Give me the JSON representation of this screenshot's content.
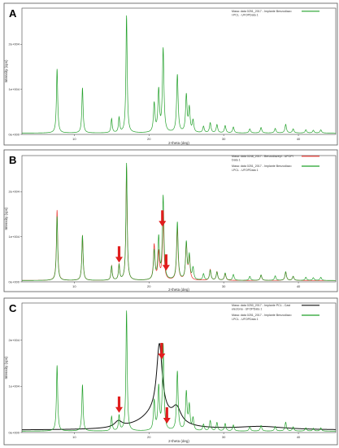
{
  "chart_data": [
    {
      "type": "line",
      "panel": "A",
      "xlabel": "2-theta (deg)",
      "ylabel": "Intensity (cps)",
      "xlim": [
        3,
        45
      ],
      "ylim": [
        0,
        28000
      ],
      "xticks": [
        "10",
        "20",
        "30",
        "40"
      ],
      "yticks": [
        "0e+000",
        "1e+004",
        "2e+004"
      ],
      "legend_position": "top-right",
      "series": [
        {
          "name": "Masa: data 0251_2017 - Implante Benzodiazo\nl-PCL - UFOPData 1",
          "color": "#22a02a",
          "baseline": 300,
          "peaks": [
            [
              7.7,
              14200,
              0.1
            ],
            [
              11.1,
              10000,
              0.1
            ],
            [
              15.0,
              3100,
              0.1
            ],
            [
              16.0,
              3300,
              0.1
            ],
            [
              17.0,
              26000,
              0.1
            ],
            [
              20.7,
              6400,
              0.12
            ],
            [
              21.3,
              9200,
              0.12
            ],
            [
              21.9,
              18500,
              0.12
            ],
            [
              23.8,
              12800,
              0.12
            ],
            [
              25.0,
              8200,
              0.12
            ],
            [
              25.4,
              5200,
              0.12
            ],
            [
              25.9,
              2600,
              0.12
            ],
            [
              27.3,
              1400,
              0.12
            ],
            [
              28.2,
              2200,
              0.12
            ],
            [
              29.1,
              1800,
              0.12
            ],
            [
              30.2,
              1600,
              0.12
            ],
            [
              31.3,
              1300,
              0.12
            ],
            [
              33.5,
              900,
              0.12
            ],
            [
              35.0,
              1200,
              0.12
            ],
            [
              36.9,
              1000,
              0.12
            ],
            [
              38.3,
              1900,
              0.12
            ],
            [
              39.3,
              900,
              0.12
            ],
            [
              41.0,
              700,
              0.12
            ],
            [
              42.0,
              600,
              0.12
            ],
            [
              43.0,
              700,
              0.12
            ]
          ]
        }
      ]
    },
    {
      "type": "line",
      "panel": "B",
      "xlabel": "2-theta (deg)",
      "ylabel": "Intensity (cps)",
      "xlim": [
        3,
        45
      ],
      "ylim": [
        0,
        28000
      ],
      "xticks": [
        "10",
        "20",
        "30",
        "40"
      ],
      "yticks": [
        "0e+000",
        "1e+004",
        "2e+004"
      ],
      "legend_position": "top-right",
      "arrows_x": [
        16.0,
        21.8,
        22.3
      ],
      "series": [
        {
          "name": "Masa: data 0248_2017 - Benzodiazepi - UFOPI\nData 1",
          "color": "#e8302a",
          "baseline": 300,
          "peaks": [
            [
              7.7,
              15600,
              0.1
            ],
            [
              11.1,
              10000,
              0.1
            ],
            [
              15.0,
              3200,
              0.1
            ],
            [
              16.0,
              3500,
              0.1
            ],
            [
              17.0,
              25000,
              0.1
            ],
            [
              20.7,
              7800,
              0.12
            ],
            [
              21.3,
              6000,
              0.12
            ],
            [
              21.9,
              14000,
              0.12
            ],
            [
              23.8,
              11500,
              0.12
            ],
            [
              25.0,
              8000,
              0.12
            ],
            [
              25.4,
              5000,
              0.12
            ],
            [
              28.2,
              2400,
              0.12
            ],
            [
              29.1,
              1900,
              0.12
            ],
            [
              30.2,
              1500,
              0.12
            ],
            [
              35.0,
              1200,
              0.12
            ],
            [
              38.3,
              1900,
              0.12
            ],
            [
              39.3,
              900,
              0.12
            ]
          ]
        },
        {
          "name": "Masa: data 0251_2017 - Implante Benzodiazo\nl-PCL - UFOPData 1",
          "color": "#22a02a",
          "baseline": 300,
          "peaks": [
            [
              7.7,
              14200,
              0.1
            ],
            [
              11.1,
              10000,
              0.1
            ],
            [
              15.0,
              3100,
              0.1
            ],
            [
              16.0,
              3300,
              0.1
            ],
            [
              17.0,
              26000,
              0.1
            ],
            [
              20.7,
              6400,
              0.12
            ],
            [
              21.3,
              9200,
              0.12
            ],
            [
              21.9,
              18500,
              0.12
            ],
            [
              23.8,
              12800,
              0.12
            ],
            [
              25.0,
              8200,
              0.12
            ],
            [
              25.4,
              5200,
              0.12
            ],
            [
              25.9,
              2600,
              0.12
            ],
            [
              27.3,
              1400,
              0.12
            ],
            [
              28.2,
              2200,
              0.12
            ],
            [
              29.1,
              1800,
              0.12
            ],
            [
              30.2,
              1600,
              0.12
            ],
            [
              31.3,
              1300,
              0.12
            ],
            [
              33.5,
              900,
              0.12
            ],
            [
              35.0,
              1200,
              0.12
            ],
            [
              36.9,
              1000,
              0.12
            ],
            [
              38.3,
              1900,
              0.12
            ],
            [
              39.3,
              900,
              0.12
            ],
            [
              41.0,
              700,
              0.12
            ],
            [
              42.0,
              600,
              0.12
            ],
            [
              43.0,
              700,
              0.12
            ]
          ]
        }
      ]
    },
    {
      "type": "line",
      "panel": "C",
      "xlabel": "2-theta (deg)",
      "ylabel": "Intensity (cps)",
      "xlim": [
        3,
        45
      ],
      "ylim": [
        0,
        28000
      ],
      "xticks": [
        "10",
        "20",
        "30",
        "40"
      ],
      "yticks": [
        "0e+000",
        "1e+004",
        "2e+004"
      ],
      "legend_position": "top-right",
      "arrows_x": [
        16.0,
        21.7,
        22.4
      ],
      "series": [
        {
          "name": "Masa: data 0250_2017 - Implante PCL - Cast\nelectona - UFOPData 1",
          "color": "#111111",
          "baseline": 500,
          "peaks": [
            [
              15.9,
              1300,
              0.6
            ],
            [
              21.4,
              15000,
              0.45
            ],
            [
              23.7,
              3200,
              0.7
            ],
            [
              21.0,
              3500,
              2.5
            ],
            [
              35.0,
              700,
              4.0
            ]
          ]
        },
        {
          "name": "Masa: data 0251_2017 - Implante Benzodiazo\nl-PCL - UFOPData 1",
          "color": "#22a02a",
          "baseline": 300,
          "peaks": [
            [
              7.7,
              14200,
              0.1
            ],
            [
              11.1,
              10000,
              0.1
            ],
            [
              15.0,
              3100,
              0.1
            ],
            [
              16.0,
              3300,
              0.1
            ],
            [
              17.0,
              26000,
              0.1
            ],
            [
              20.7,
              6400,
              0.12
            ],
            [
              21.3,
              9200,
              0.12
            ],
            [
              21.9,
              18500,
              0.12
            ],
            [
              23.8,
              12800,
              0.12
            ],
            [
              25.0,
              8200,
              0.12
            ],
            [
              25.4,
              5200,
              0.12
            ],
            [
              25.9,
              2600,
              0.12
            ],
            [
              27.3,
              1400,
              0.12
            ],
            [
              28.2,
              2200,
              0.12
            ],
            [
              29.1,
              1800,
              0.12
            ],
            [
              30.2,
              1600,
              0.12
            ],
            [
              31.3,
              1300,
              0.12
            ],
            [
              33.5,
              900,
              0.12
            ],
            [
              35.0,
              1200,
              0.12
            ],
            [
              36.9,
              1000,
              0.12
            ],
            [
              38.3,
              1900,
              0.12
            ],
            [
              39.3,
              900,
              0.12
            ],
            [
              41.0,
              700,
              0.12
            ],
            [
              42.0,
              600,
              0.12
            ],
            [
              43.0,
              700,
              0.12
            ]
          ]
        }
      ]
    }
  ]
}
